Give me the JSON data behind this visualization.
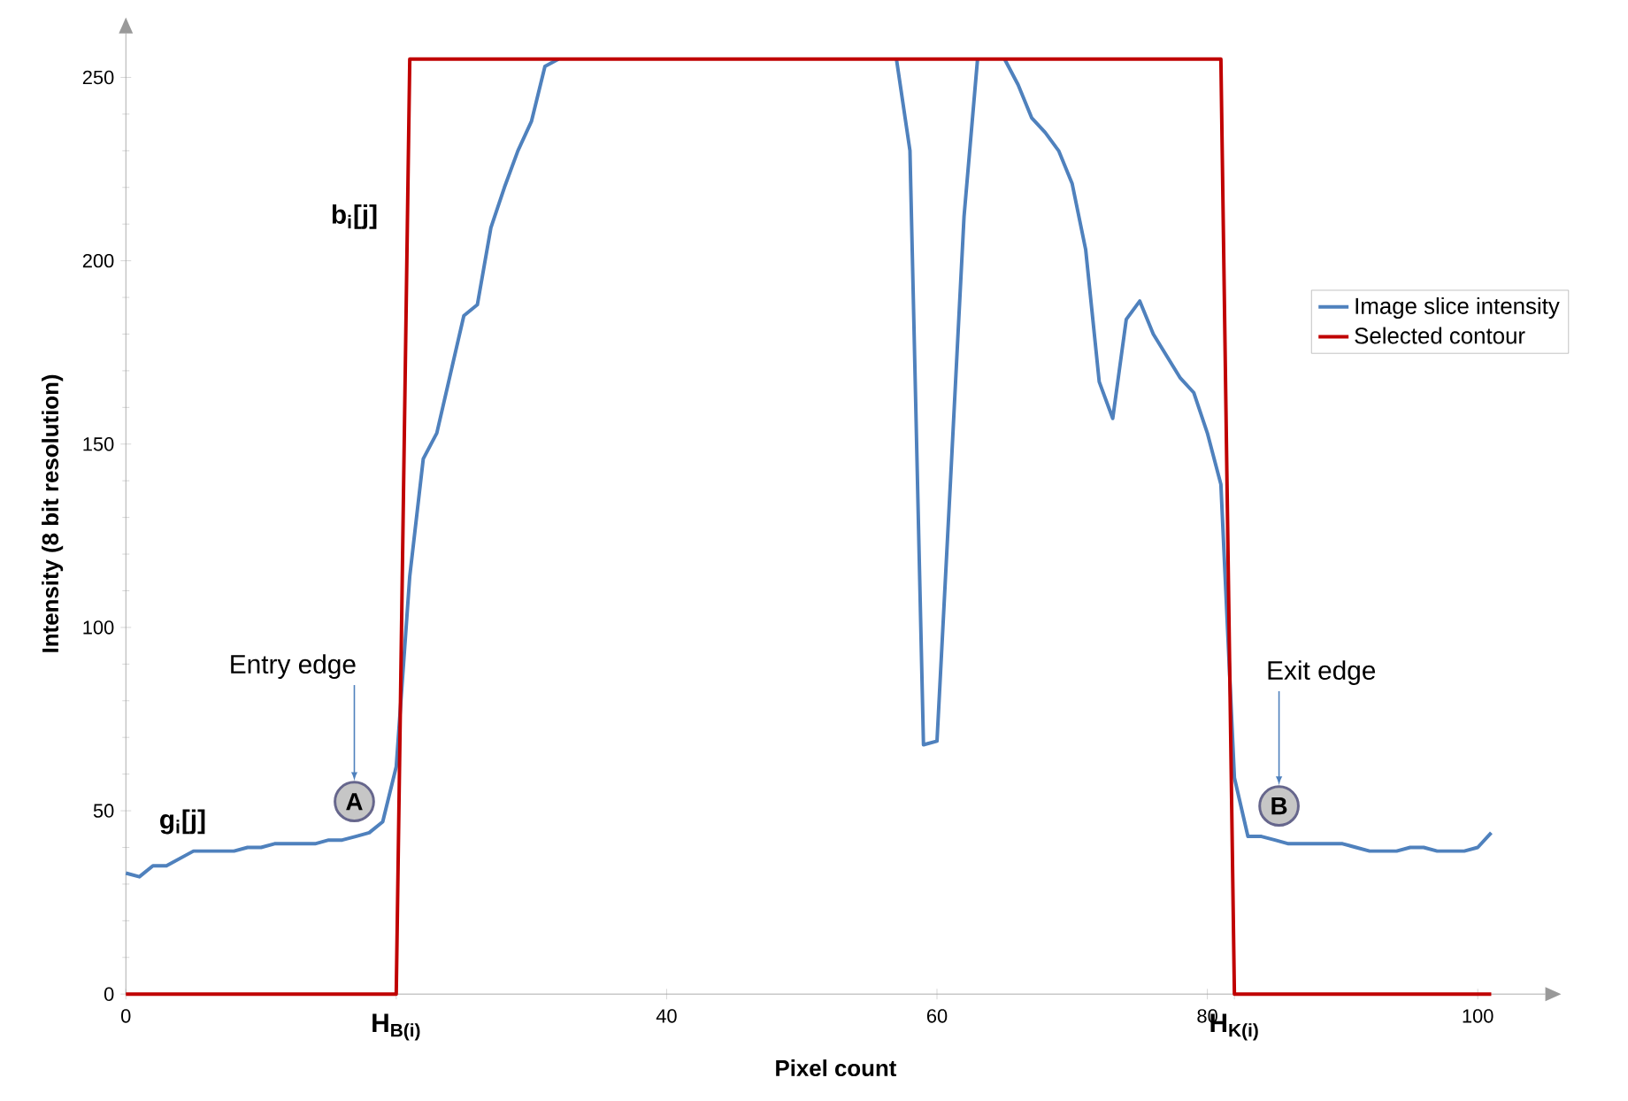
{
  "chart_data": {
    "type": "line",
    "xlabel": "Pixel count",
    "ylabel": "Intensity (8 bit resolution)",
    "xlim": [
      0,
      105
    ],
    "ylim": [
      0,
      262
    ],
    "xticks": [
      0,
      {
        "value": 20,
        "label": "H$_{B(i)}$"
      },
      40,
      60,
      80,
      {
        "value": 82,
        "label": "H$_{K(i)}$"
      },
      100
    ],
    "yticks": [
      0,
      50,
      100,
      150,
      200,
      250
    ],
    "marker": "none",
    "line_style": "solid",
    "legend": "right",
    "series": [
      {
        "name": "Image slice intensity",
        "color": "#4f81bd",
        "x": [
          0,
          1,
          2,
          3,
          4,
          5,
          6,
          7,
          8,
          9,
          10,
          11,
          12,
          13,
          14,
          15,
          16,
          17,
          18,
          19,
          20,
          21,
          22,
          23,
          24,
          25,
          26,
          27,
          28,
          29,
          30,
          31,
          32,
          33,
          34,
          35,
          36,
          37,
          38,
          39,
          40,
          41,
          42,
          43,
          44,
          45,
          46,
          47,
          48,
          49,
          50,
          51,
          52,
          53,
          54,
          55,
          56,
          57,
          58,
          59,
          60,
          61,
          62,
          63,
          64,
          65,
          66,
          67,
          68,
          69,
          70,
          71,
          72,
          73,
          74,
          75,
          76,
          77,
          78,
          79,
          80,
          81,
          82,
          83,
          84,
          85,
          86,
          87,
          88,
          89,
          90,
          91,
          92,
          93,
          94,
          95,
          96,
          97,
          98,
          99,
          100,
          101
        ],
        "values": [
          33,
          32,
          35,
          35,
          37,
          39,
          39,
          39,
          39,
          40,
          40,
          41,
          41,
          41,
          41,
          42,
          42,
          43,
          44,
          47,
          62,
          114,
          146,
          153,
          169,
          185,
          188,
          209,
          220,
          230,
          238,
          253,
          255,
          null,
          null,
          null,
          null,
          null,
          null,
          null,
          null,
          null,
          null,
          null,
          null,
          null,
          null,
          null,
          null,
          null,
          null,
          null,
          null,
          null,
          null,
          null,
          null,
          255,
          230,
          68,
          69,
          140,
          212,
          255,
          null,
          255,
          248,
          239,
          235,
          230,
          221,
          203,
          167,
          157,
          184,
          189,
          180,
          174,
          168,
          164,
          153,
          139,
          59,
          43,
          43,
          42,
          41,
          41,
          41,
          41,
          41,
          40,
          39,
          39,
          39,
          40,
          40,
          39,
          39,
          39,
          40,
          44
        ]
      },
      {
        "name": "Selected contour",
        "color": "#c00000",
        "x": [
          0,
          20,
          21,
          81,
          82,
          101
        ],
        "values": [
          0,
          0,
          255,
          255,
          0,
          0
        ]
      }
    ],
    "annotations": [
      "g$_{i}$[j]",
      "b$_{i}$[j]",
      "Entry edge",
      {
        "text": "A",
        "x": 16.9,
        "y": 52.5
      },
      "Exit edge",
      {
        "text": "B",
        "x": 85.3,
        "y": 51.3
      }
    ]
  }
}
